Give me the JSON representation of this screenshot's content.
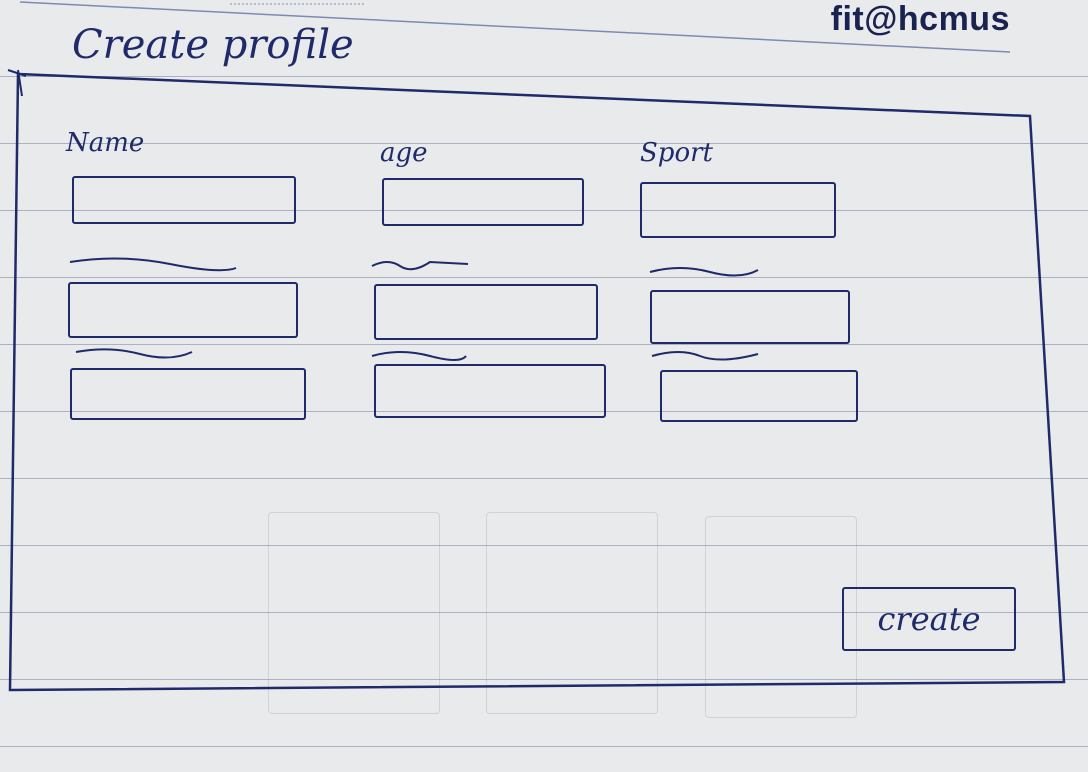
{
  "header": {
    "brand": "fit@hcmus",
    "title": "Create profile"
  },
  "columns": [
    {
      "label": "Name"
    },
    {
      "label": "age"
    },
    {
      "label": "Sport"
    }
  ],
  "create_button": {
    "label": "create"
  }
}
